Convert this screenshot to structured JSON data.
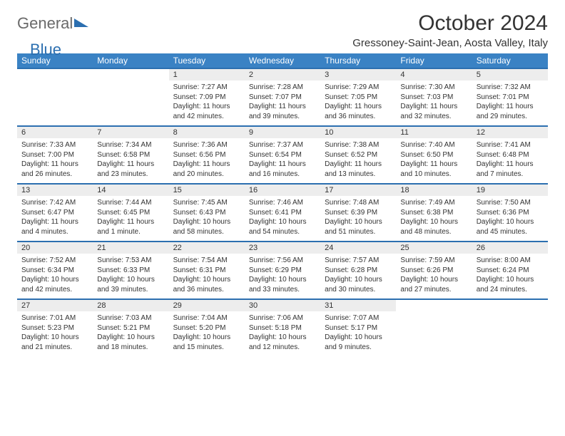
{
  "logo": {
    "general": "General",
    "blue": "Blue"
  },
  "title": "October 2024",
  "location": "Gressoney-Saint-Jean, Aosta Valley, Italy",
  "colors": {
    "header_bg": "#3a82c4",
    "sep": "#2c6fb0",
    "daynum_bg": "#ededed",
    "text": "#333333"
  },
  "dow": [
    "Sunday",
    "Monday",
    "Tuesday",
    "Wednesday",
    "Thursday",
    "Friday",
    "Saturday"
  ],
  "weeks": [
    [
      {
        "num": "",
        "lines": []
      },
      {
        "num": "",
        "lines": []
      },
      {
        "num": "1",
        "lines": [
          "Sunrise: 7:27 AM",
          "Sunset: 7:09 PM",
          "Daylight: 11 hours and 42 minutes."
        ]
      },
      {
        "num": "2",
        "lines": [
          "Sunrise: 7:28 AM",
          "Sunset: 7:07 PM",
          "Daylight: 11 hours and 39 minutes."
        ]
      },
      {
        "num": "3",
        "lines": [
          "Sunrise: 7:29 AM",
          "Sunset: 7:05 PM",
          "Daylight: 11 hours and 36 minutes."
        ]
      },
      {
        "num": "4",
        "lines": [
          "Sunrise: 7:30 AM",
          "Sunset: 7:03 PM",
          "Daylight: 11 hours and 32 minutes."
        ]
      },
      {
        "num": "5",
        "lines": [
          "Sunrise: 7:32 AM",
          "Sunset: 7:01 PM",
          "Daylight: 11 hours and 29 minutes."
        ]
      }
    ],
    [
      {
        "num": "6",
        "lines": [
          "Sunrise: 7:33 AM",
          "Sunset: 7:00 PM",
          "Daylight: 11 hours and 26 minutes."
        ]
      },
      {
        "num": "7",
        "lines": [
          "Sunrise: 7:34 AM",
          "Sunset: 6:58 PM",
          "Daylight: 11 hours and 23 minutes."
        ]
      },
      {
        "num": "8",
        "lines": [
          "Sunrise: 7:36 AM",
          "Sunset: 6:56 PM",
          "Daylight: 11 hours and 20 minutes."
        ]
      },
      {
        "num": "9",
        "lines": [
          "Sunrise: 7:37 AM",
          "Sunset: 6:54 PM",
          "Daylight: 11 hours and 16 minutes."
        ]
      },
      {
        "num": "10",
        "lines": [
          "Sunrise: 7:38 AM",
          "Sunset: 6:52 PM",
          "Daylight: 11 hours and 13 minutes."
        ]
      },
      {
        "num": "11",
        "lines": [
          "Sunrise: 7:40 AM",
          "Sunset: 6:50 PM",
          "Daylight: 11 hours and 10 minutes."
        ]
      },
      {
        "num": "12",
        "lines": [
          "Sunrise: 7:41 AM",
          "Sunset: 6:48 PM",
          "Daylight: 11 hours and 7 minutes."
        ]
      }
    ],
    [
      {
        "num": "13",
        "lines": [
          "Sunrise: 7:42 AM",
          "Sunset: 6:47 PM",
          "Daylight: 11 hours and 4 minutes."
        ]
      },
      {
        "num": "14",
        "lines": [
          "Sunrise: 7:44 AM",
          "Sunset: 6:45 PM",
          "Daylight: 11 hours and 1 minute."
        ]
      },
      {
        "num": "15",
        "lines": [
          "Sunrise: 7:45 AM",
          "Sunset: 6:43 PM",
          "Daylight: 10 hours and 58 minutes."
        ]
      },
      {
        "num": "16",
        "lines": [
          "Sunrise: 7:46 AM",
          "Sunset: 6:41 PM",
          "Daylight: 10 hours and 54 minutes."
        ]
      },
      {
        "num": "17",
        "lines": [
          "Sunrise: 7:48 AM",
          "Sunset: 6:39 PM",
          "Daylight: 10 hours and 51 minutes."
        ]
      },
      {
        "num": "18",
        "lines": [
          "Sunrise: 7:49 AM",
          "Sunset: 6:38 PM",
          "Daylight: 10 hours and 48 minutes."
        ]
      },
      {
        "num": "19",
        "lines": [
          "Sunrise: 7:50 AM",
          "Sunset: 6:36 PM",
          "Daylight: 10 hours and 45 minutes."
        ]
      }
    ],
    [
      {
        "num": "20",
        "lines": [
          "Sunrise: 7:52 AM",
          "Sunset: 6:34 PM",
          "Daylight: 10 hours and 42 minutes."
        ]
      },
      {
        "num": "21",
        "lines": [
          "Sunrise: 7:53 AM",
          "Sunset: 6:33 PM",
          "Daylight: 10 hours and 39 minutes."
        ]
      },
      {
        "num": "22",
        "lines": [
          "Sunrise: 7:54 AM",
          "Sunset: 6:31 PM",
          "Daylight: 10 hours and 36 minutes."
        ]
      },
      {
        "num": "23",
        "lines": [
          "Sunrise: 7:56 AM",
          "Sunset: 6:29 PM",
          "Daylight: 10 hours and 33 minutes."
        ]
      },
      {
        "num": "24",
        "lines": [
          "Sunrise: 7:57 AM",
          "Sunset: 6:28 PM",
          "Daylight: 10 hours and 30 minutes."
        ]
      },
      {
        "num": "25",
        "lines": [
          "Sunrise: 7:59 AM",
          "Sunset: 6:26 PM",
          "Daylight: 10 hours and 27 minutes."
        ]
      },
      {
        "num": "26",
        "lines": [
          "Sunrise: 8:00 AM",
          "Sunset: 6:24 PM",
          "Daylight: 10 hours and 24 minutes."
        ]
      }
    ],
    [
      {
        "num": "27",
        "lines": [
          "Sunrise: 7:01 AM",
          "Sunset: 5:23 PM",
          "Daylight: 10 hours and 21 minutes."
        ]
      },
      {
        "num": "28",
        "lines": [
          "Sunrise: 7:03 AM",
          "Sunset: 5:21 PM",
          "Daylight: 10 hours and 18 minutes."
        ]
      },
      {
        "num": "29",
        "lines": [
          "Sunrise: 7:04 AM",
          "Sunset: 5:20 PM",
          "Daylight: 10 hours and 15 minutes."
        ]
      },
      {
        "num": "30",
        "lines": [
          "Sunrise: 7:06 AM",
          "Sunset: 5:18 PM",
          "Daylight: 10 hours and 12 minutes."
        ]
      },
      {
        "num": "31",
        "lines": [
          "Sunrise: 7:07 AM",
          "Sunset: 5:17 PM",
          "Daylight: 10 hours and 9 minutes."
        ]
      },
      {
        "num": "",
        "lines": []
      },
      {
        "num": "",
        "lines": []
      }
    ]
  ]
}
